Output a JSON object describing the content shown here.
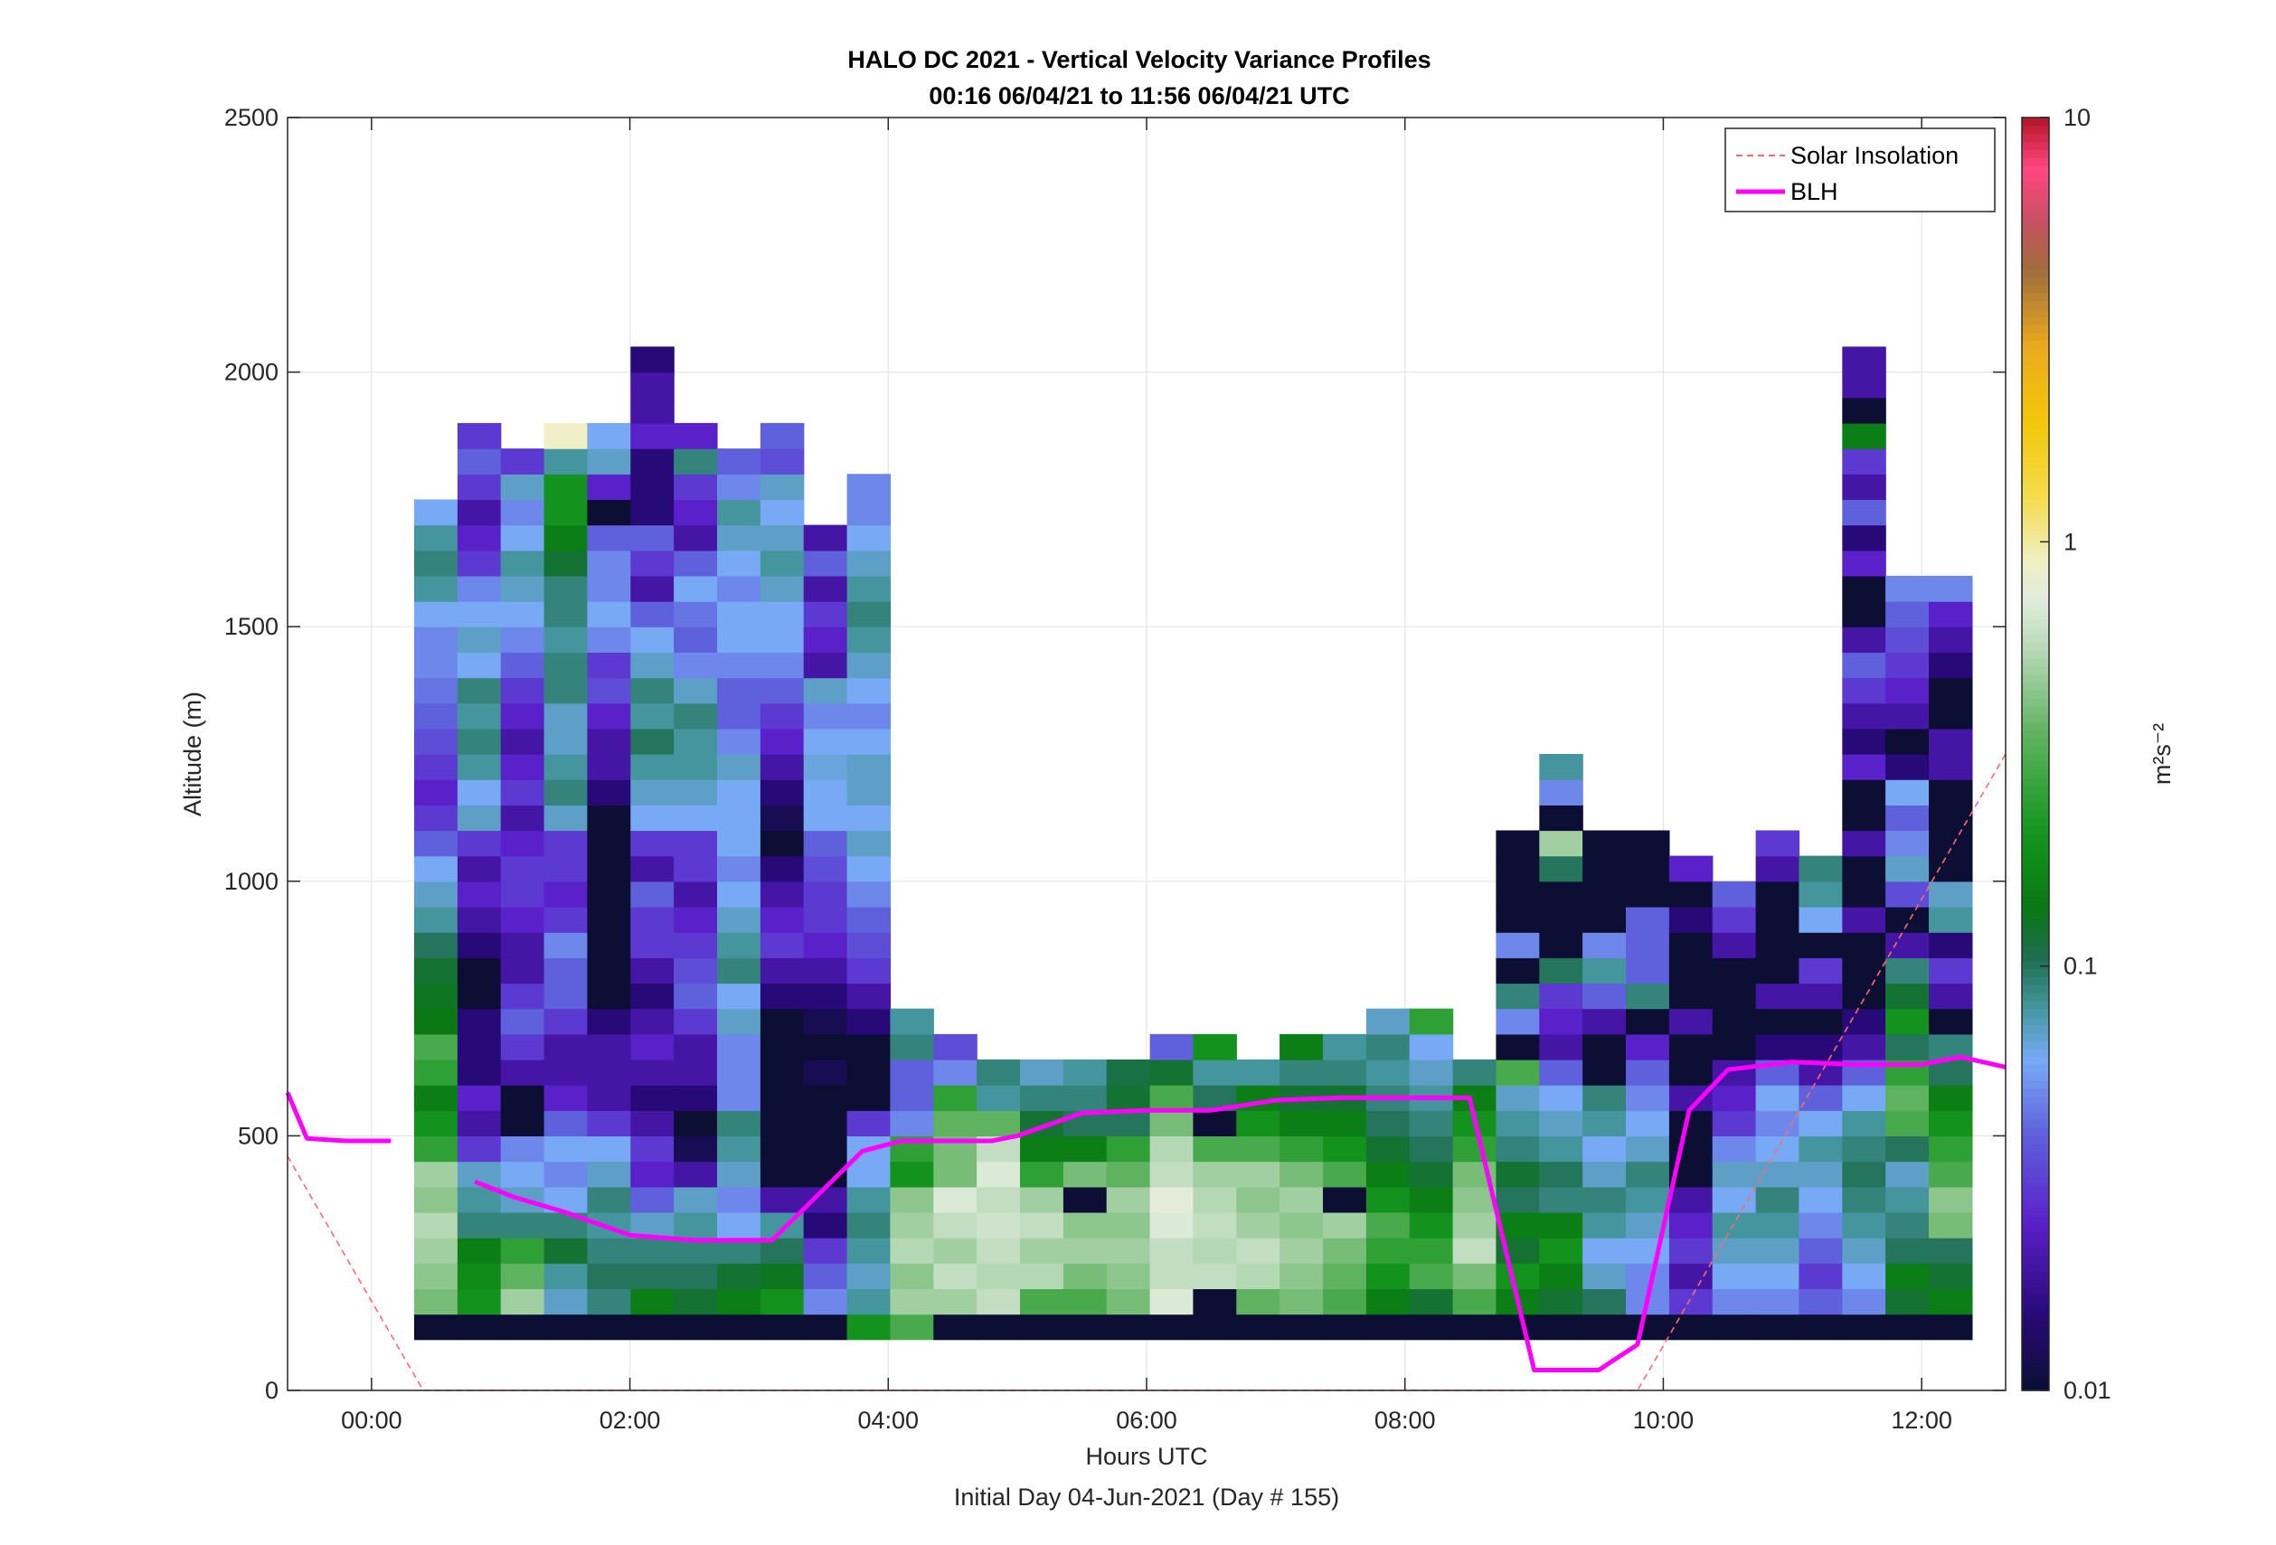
{
  "chart_data": {
    "type": "heatmap",
    "title": "HALO DC 2021 - Vertical Velocity Variance Profiles",
    "subtitle": "00:16 06/04/21 to 11:56 06/04/21  UTC",
    "xlabel": "Hours UTC",
    "xlabel_secondary": "Initial Day 04-Jun-2021 (Day # 155)",
    "ylabel": "Altitude (m)",
    "xlim": [
      -0.65,
      12.65
    ],
    "ylim": [
      0,
      2500
    ],
    "x_ticks": [
      0,
      2,
      4,
      6,
      8,
      10,
      12
    ],
    "x_tick_labels": [
      "00:00",
      "02:00",
      "04:00",
      "06:00",
      "08:00",
      "10:00",
      "12:00"
    ],
    "y_ticks": [
      0,
      500,
      1000,
      1500,
      2000,
      2500
    ],
    "y_tick_labels": [
      "0",
      "500",
      "1000",
      "1500",
      "2000",
      "2500"
    ],
    "grid": true,
    "legend_position": "top-right",
    "legend": [
      {
        "label": "Solar Insolation",
        "color": "#ff6b6b",
        "style": "dashed"
      },
      {
        "label": "BLH",
        "color": "#ff00ff",
        "style": "solid"
      }
    ],
    "colorbar": {
      "label": "m²s⁻²",
      "scale": "log",
      "range": [
        0.01,
        10
      ],
      "ticks": [
        0.01,
        0.1,
        1,
        10
      ],
      "tick_labels": [
        "0.01",
        "0.1",
        "1",
        "10"
      ]
    },
    "heatmap": {
      "x_start": 0.33,
      "x_step": 0.335,
      "y_start": 100,
      "y_step": 50,
      "columns": [
        {
          "col": 0,
          "v": [
            0.01,
            0.4,
            0.45,
            0.5,
            0.55,
            0.45,
            0.5,
            0.25,
            0.2,
            0.15,
            0.25,
            0.3,
            0.14,
            0.13,
            0.12,
            0.1,
            0.08,
            0.07,
            0.06,
            0.04,
            0.03,
            0.025,
            0.03,
            0.035,
            0.04,
            0.045,
            0.05,
            0.05,
            0.06,
            0.08,
            0.09,
            0.08,
            0.06
          ]
        },
        {
          "col": 1,
          "v": [
            0.01,
            0.2,
            0.18,
            0.15,
            0.09,
            0.08,
            0.07,
            0.03,
            0.02,
            0.025,
            0.015,
            0.015,
            0.015,
            0.01,
            0.01,
            0.015,
            0.02,
            0.025,
            0.02,
            0.03,
            0.07,
            0.06,
            0.08,
            0.09,
            0.08,
            0.09,
            0.06,
            0.07,
            0.06,
            0.05,
            0.03,
            0.025,
            0.02,
            0.03,
            0.04,
            0.03
          ]
        },
        {
          "col": 2,
          "v": [
            0.01,
            0.5,
            0.35,
            0.25,
            0.09,
            0.07,
            0.06,
            0.05,
            0.01,
            0.01,
            0.02,
            0.03,
            0.04,
            0.03,
            0.02,
            0.02,
            0.025,
            0.03,
            0.03,
            0.025,
            0.02,
            0.03,
            0.025,
            0.02,
            0.025,
            0.03,
            0.04,
            0.05,
            0.06,
            0.07,
            0.08,
            0.06,
            0.05,
            0.07,
            0.03
          ]
        },
        {
          "col": 3,
          "v": [
            0.01,
            0.07,
            0.08,
            0.12,
            0.09,
            0.06,
            0.05,
            0.06,
            0.04,
            0.025,
            0.02,
            0.02,
            0.03,
            0.04,
            0.04,
            0.05,
            0.03,
            0.025,
            0.03,
            0.03,
            0.07,
            0.09,
            0.08,
            0.07,
            0.07,
            0.09,
            0.09,
            0.08,
            0.09,
            0.09,
            0.12,
            0.15,
            0.2,
            0.2,
            0.08,
            0.9
          ]
        },
        {
          "col": 4,
          "v": [
            0.01,
            0.09,
            0.1,
            0.09,
            0.08,
            0.09,
            0.07,
            0.06,
            0.03,
            0.02,
            0.02,
            0.02,
            0.015,
            0.01,
            0.01,
            0.01,
            0.01,
            0.01,
            0.01,
            0.01,
            0.01,
            0.015,
            0.02,
            0.02,
            0.025,
            0.035,
            0.03,
            0.05,
            0.06,
            0.05,
            0.05,
            0.04,
            0.01,
            0.025,
            0.07,
            0.06
          ]
        },
        {
          "col": 5,
          "v": [
            0.01,
            0.15,
            0.1,
            0.09,
            0.07,
            0.04,
            0.025,
            0.03,
            0.02,
            0.015,
            0.02,
            0.025,
            0.02,
            0.015,
            0.02,
            0.03,
            0.03,
            0.04,
            0.02,
            0.03,
            0.06,
            0.07,
            0.08,
            0.1,
            0.08,
            0.09,
            0.07,
            0.06,
            0.04,
            0.02,
            0.03,
            0.04,
            0.015,
            0.015,
            0.015,
            0.025,
            0.02,
            0.02,
            0.015
          ]
        },
        {
          "col": 6,
          "v": [
            0.01,
            0.12,
            0.1,
            0.09,
            0.08,
            0.07,
            0.02,
            0.012,
            0.01,
            0.015,
            0.02,
            0.02,
            0.03,
            0.04,
            0.035,
            0.03,
            0.025,
            0.02,
            0.03,
            0.03,
            0.06,
            0.07,
            0.08,
            0.08,
            0.09,
            0.07,
            0.05,
            0.04,
            0.045,
            0.06,
            0.04,
            0.02,
            0.025,
            0.03,
            0.09,
            0.025
          ]
        },
        {
          "col": 7,
          "v": [
            0.01,
            0.15,
            0.12,
            0.09,
            0.06,
            0.05,
            0.07,
            0.08,
            0.09,
            0.05,
            0.05,
            0.05,
            0.07,
            0.06,
            0.09,
            0.08,
            0.07,
            0.06,
            0.05,
            0.06,
            0.06,
            0.06,
            0.07,
            0.05,
            0.04,
            0.04,
            0.05,
            0.06,
            0.06,
            0.05,
            0.06,
            0.07,
            0.08,
            0.05,
            0.04
          ]
        },
        {
          "col": 8,
          "v": [
            0.01,
            0.2,
            0.13,
            0.1,
            0.08,
            0.02,
            0.01,
            0.01,
            0.01,
            0.01,
            0.01,
            0.01,
            0.01,
            0.015,
            0.02,
            0.03,
            0.025,
            0.02,
            0.015,
            0.01,
            0.012,
            0.015,
            0.02,
            0.025,
            0.03,
            0.04,
            0.05,
            0.06,
            0.06,
            0.07,
            0.08,
            0.07,
            0.06,
            0.07,
            0.035,
            0.04
          ]
        },
        {
          "col": 9,
          "v": [
            0.01,
            0.05,
            0.04,
            0.03,
            0.015,
            0.02,
            0.01,
            0.01,
            0.01,
            0.01,
            0.012,
            0.01,
            0.012,
            0.015,
            0.02,
            0.025,
            0.03,
            0.03,
            0.035,
            0.04,
            0.06,
            0.06,
            0.065,
            0.06,
            0.05,
            0.07,
            0.02,
            0.025,
            0.03,
            0.02,
            0.04,
            0.02
          ]
        },
        {
          "col": 10,
          "v": [
            0.2,
            0.08,
            0.07,
            0.08,
            0.09,
            0.08,
            0.06,
            0.06,
            0.03,
            0.01,
            0.01,
            0.01,
            0.015,
            0.02,
            0.03,
            0.035,
            0.04,
            0.05,
            0.06,
            0.07,
            0.06,
            0.07,
            0.07,
            0.06,
            0.05,
            0.06,
            0.07,
            0.08,
            0.09,
            0.08,
            0.07,
            0.06,
            0.05,
            0.05
          ]
        },
        {
          "col": 11,
          "v": [
            0.3,
            0.5,
            0.45,
            0.55,
            0.5,
            0.45,
            0.2,
            0.25,
            0.05,
            0.04,
            0.04,
            0.09,
            0.08
          ]
        },
        {
          "col": 12,
          "v": [
            0.01,
            0.5,
            0.6,
            0.5,
            0.6,
            0.7,
            0.4,
            0.4,
            0.35,
            0.25,
            0.05,
            0.035
          ]
        },
        {
          "col": 13,
          "v": [
            0.01,
            0.6,
            0.55,
            0.6,
            0.65,
            0.6,
            0.7,
            0.6,
            0.35,
            0.08,
            0.09
          ]
        },
        {
          "col": 14,
          "v": [
            0.01,
            0.3,
            0.55,
            0.5,
            0.6,
            0.5,
            0.25,
            0.15,
            0.12,
            0.09,
            0.07
          ]
        },
        {
          "col": 15,
          "v": [
            0.01,
            0.3,
            0.4,
            0.5,
            0.45,
            0.01,
            0.4,
            0.15,
            0.1,
            0.09,
            0.08
          ]
        },
        {
          "col": 16,
          "v": [
            0.01,
            0.4,
            0.45,
            0.5,
            0.45,
            0.5,
            0.35,
            0.25,
            0.1,
            0.12,
            0.11
          ]
        },
        {
          "col": 17,
          "v": [
            0.01,
            0.7,
            0.6,
            0.6,
            0.7,
            0.75,
            0.6,
            0.55,
            0.4,
            0.3,
            0.12,
            0.04
          ]
        },
        {
          "col": 18,
          "v": [
            0.01,
            0.01,
            0.6,
            0.55,
            0.6,
            0.55,
            0.5,
            0.3,
            0.01,
            0.1,
            0.08,
            0.2
          ]
        },
        {
          "col": 19,
          "v": [
            0.01,
            0.35,
            0.55,
            0.6,
            0.5,
            0.45,
            0.5,
            0.3,
            0.2,
            0.15,
            0.08
          ]
        },
        {
          "col": 20,
          "v": [
            0.01,
            0.4,
            0.45,
            0.5,
            0.45,
            0.5,
            0.4,
            0.25,
            0.15,
            0.12,
            0.09,
            0.15
          ]
        },
        {
          "col": 21,
          "v": [
            0.01,
            0.3,
            0.35,
            0.4,
            0.5,
            0.01,
            0.3,
            0.2,
            0.15,
            0.12,
            0.09,
            0.08
          ]
        },
        {
          "col": 22,
          "v": [
            0.01,
            0.15,
            0.2,
            0.25,
            0.3,
            0.2,
            0.15,
            0.12,
            0.1,
            0.09,
            0.08,
            0.09,
            0.07
          ]
        },
        {
          "col": 23,
          "v": [
            0.01,
            0.12,
            0.3,
            0.25,
            0.2,
            0.15,
            0.12,
            0.1,
            0.09,
            0.08,
            0.07,
            0.06,
            0.25
          ]
        },
        {
          "col": 24,
          "v": [
            0.01,
            0.3,
            0.4,
            0.6,
            0.5,
            0.45,
            0.4,
            0.25,
            0.2,
            0.15,
            0.09
          ]
        },
        {
          "col": 25,
          "v": [
            0.01,
            0.15,
            0.2,
            0.12,
            0.15,
            0.1,
            0.12,
            0.09,
            0.08,
            0.07,
            0.3,
            0.01,
            0.05,
            0.09,
            0.01,
            0.05,
            0.01,
            0.01,
            0.01,
            0.01
          ]
        },
        {
          "col": 26,
          "v": [
            0.01,
            0.12,
            0.15,
            0.2,
            0.15,
            0.09,
            0.1,
            0.08,
            0.07,
            0.06,
            0.04,
            0.02,
            0.025,
            0.03,
            0.1,
            0.01,
            0.01,
            0.01,
            0.1,
            0.5,
            0.01,
            0.05,
            0.08
          ]
        },
        {
          "col": 27,
          "v": [
            0.01,
            0.1,
            0.07,
            0.06,
            0.08,
            0.09,
            0.07,
            0.06,
            0.08,
            0.09,
            0.01,
            0.01,
            0.02,
            0.04,
            0.08,
            0.05,
            0.01,
            0.01,
            0.01,
            0.01
          ]
        },
        {
          "col": 28,
          "v": [
            0.01,
            0.05,
            0.05,
            0.06,
            0.07,
            0.08,
            0.09,
            0.07,
            0.06,
            0.05,
            0.04,
            0.025,
            0.01,
            0.09,
            0.04,
            0.04,
            0.04,
            0.01,
            0.01,
            0.01
          ]
        },
        {
          "col": 29,
          "v": [
            0.01,
            0.03,
            0.02,
            0.03,
            0.025,
            0.02,
            0.01,
            0.01,
            0.01,
            0.02,
            0.01,
            0.01,
            0.02,
            0.01,
            0.01,
            0.01,
            0.015,
            0.01,
            0.025
          ]
        },
        {
          "col": 30,
          "v": [
            0.01,
            0.05,
            0.06,
            0.07,
            0.08,
            0.06,
            0.07,
            0.05,
            0.03,
            0.025,
            0.02,
            0.01,
            0.01,
            0.01,
            0.01,
            0.02,
            0.03,
            0.04
          ]
        },
        {
          "col": 31,
          "v": [
            0.01,
            0.05,
            0.06,
            0.07,
            0.08,
            0.09,
            0.07,
            0.06,
            0.05,
            0.06,
            0.04,
            0.015,
            0.01,
            0.02,
            0.01,
            0.01,
            0.01,
            0.01,
            0.02,
            0.03
          ]
        },
        {
          "col": 32,
          "v": [
            0.01,
            0.04,
            0.03,
            0.04,
            0.05,
            0.06,
            0.07,
            0.08,
            0.06,
            0.04,
            0.02,
            0.015,
            0.01,
            0.02,
            0.03,
            0.01,
            0.06,
            0.08,
            0.09
          ]
        },
        {
          "col": 33,
          "v": [
            0.01,
            0.05,
            0.06,
            0.07,
            0.08,
            0.09,
            0.1,
            0.09,
            0.08,
            0.06,
            0.04,
            0.02,
            0.015,
            0.01,
            0.01,
            0.01,
            0.02,
            0.01,
            0.01,
            0.02,
            0.01,
            0.01,
            0.025,
            0.015,
            0.02,
            0.03,
            0.04,
            0.02,
            0.01,
            0.01,
            0.025,
            0.015,
            0.04,
            0.02,
            0.03,
            0.15,
            0.01,
            0.02,
            0.02
          ]
        },
        {
          "col": 34,
          "v": [
            0.01,
            0.12,
            0.15,
            0.1,
            0.09,
            0.08,
            0.07,
            0.1,
            0.3,
            0.35,
            0.25,
            0.1,
            0.2,
            0.12,
            0.09,
            0.02,
            0.01,
            0.035,
            0.07,
            0.05,
            0.04,
            0.06,
            0.015,
            0.01,
            0.02,
            0.025,
            0.03,
            0.035,
            0.04,
            0.05
          ]
        },
        {
          "col": 35,
          "v": [
            0.01,
            0.15,
            0.12,
            0.1,
            0.4,
            0.45,
            0.3,
            0.25,
            0.2,
            0.15,
            0.1,
            0.09,
            0.01,
            0.02,
            0.03,
            0.015,
            0.08,
            0.07,
            0.01,
            0.01,
            0.01,
            0.01,
            0.02,
            0.02,
            0.01,
            0.01,
            0.015,
            0.02,
            0.025,
            0.05
          ]
        }
      ]
    },
    "blh": {
      "x": [
        -0.65,
        -0.5,
        -0.2,
        0.15,
        0.5,
        0.8,
        1.1,
        1.5,
        2.0,
        2.5,
        3.1,
        3.6,
        3.8,
        4.1,
        4.5,
        4.8,
        5.0,
        5.5,
        6.0,
        6.5,
        7.0,
        7.5,
        7.8,
        8.2,
        8.5,
        9.0,
        9.2,
        9.5,
        9.8,
        10.2,
        10.5,
        11.0,
        11.5,
        12.0,
        12.3,
        12.65
      ],
      "y": [
        585,
        495,
        490,
        490,
        null,
        410,
        380,
        350,
        305,
        295,
        295,
        420,
        470,
        490,
        490,
        490,
        500,
        545,
        550,
        550,
        570,
        575,
        575,
        575,
        575,
        40,
        40,
        40,
        90,
        550,
        630,
        645,
        640,
        640,
        655,
        635
      ],
      "segments": [
        [
          0,
          3
        ],
        [
          5,
          35
        ]
      ]
    },
    "solar": {
      "x": [
        -0.65,
        0.4,
        9.8,
        12.65
      ],
      "y": [
        460,
        0,
        0,
        1250
      ]
    }
  }
}
